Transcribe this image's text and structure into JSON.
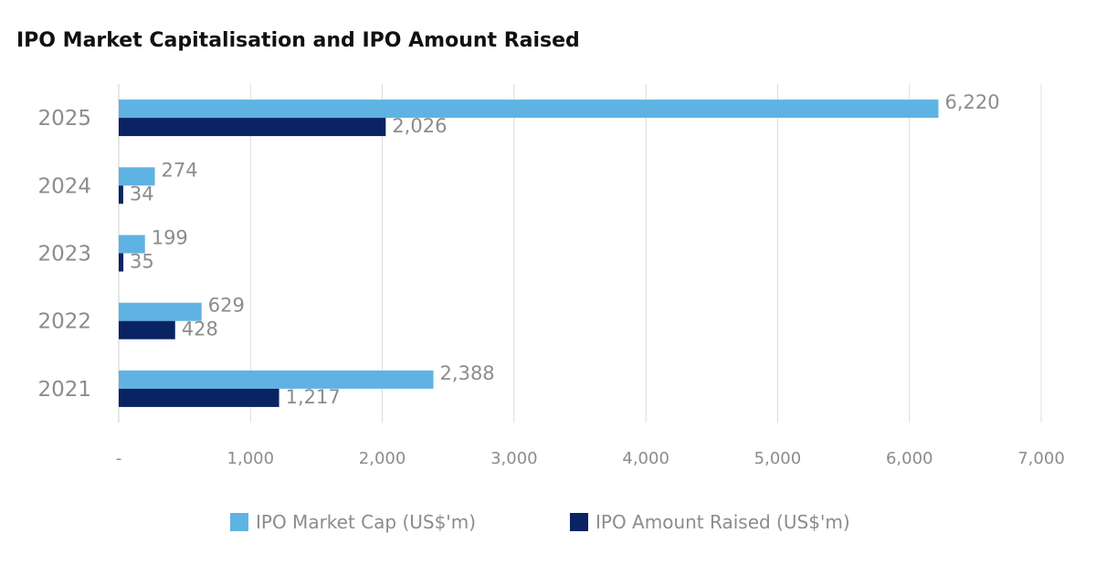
{
  "chart_data": {
    "type": "bar",
    "orientation": "horizontal",
    "title": "IPO Market Capitalisation and IPO Amount Raised",
    "categories": [
      "2025",
      "2024",
      "2023",
      "2022",
      "2021"
    ],
    "series": [
      {
        "name": "IPO Market Cap (US$'m)",
        "color": "#5fb3e3",
        "values": [
          6220,
          274,
          199,
          629,
          2388
        ],
        "labels": [
          "6,220",
          "274",
          "199",
          "629",
          "2,388"
        ]
      },
      {
        "name": "IPO Amount Raised (US$'m)",
        "color": "#0a2463",
        "values": [
          2026,
          34,
          35,
          428,
          1217
        ],
        "labels": [
          "2,026",
          "34",
          "35",
          "428",
          "1,217"
        ]
      }
    ],
    "xlim": [
      0,
      7000
    ],
    "xticks": [
      0,
      1000,
      2000,
      3000,
      4000,
      5000,
      6000,
      7000
    ],
    "xtick_labels": [
      "-",
      "1,000",
      "2,000",
      "3,000",
      "4,000",
      "5,000",
      "6,000",
      "7,000"
    ],
    "grid": true,
    "legend_position": "bottom"
  }
}
